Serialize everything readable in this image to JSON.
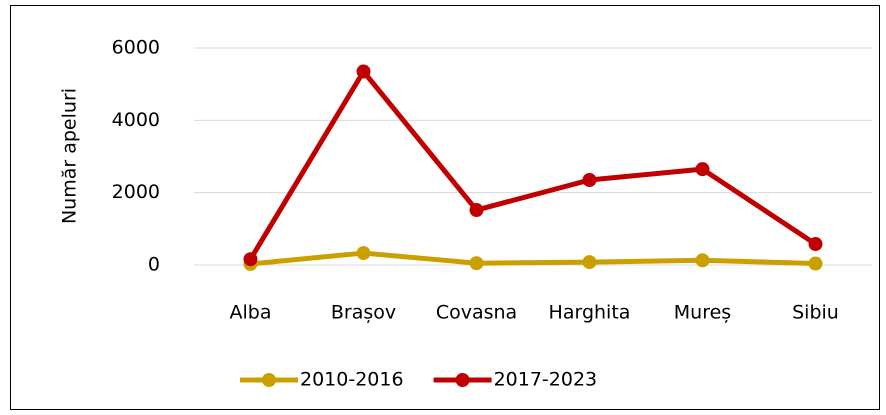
{
  "chart_data": {
    "type": "line",
    "y_label": "Număr apeluri",
    "categories": [
      "Alba",
      "Brașov",
      "Covasna",
      "Harghita",
      "Mureș",
      "Sibiu"
    ],
    "series": [
      {
        "name": "2010-2016",
        "color": "#c9a000",
        "values": [
          30,
          330,
          50,
          80,
          130,
          40
        ]
      },
      {
        "name": "2017-2023",
        "color": "#c00000",
        "values": [
          160,
          5350,
          1520,
          2350,
          2650,
          580
        ]
      }
    ],
    "ylim": [
      0,
      6000
    ],
    "yticks": [
      0,
      2000,
      4000,
      6000
    ],
    "grid": true,
    "legend": "bottom"
  }
}
